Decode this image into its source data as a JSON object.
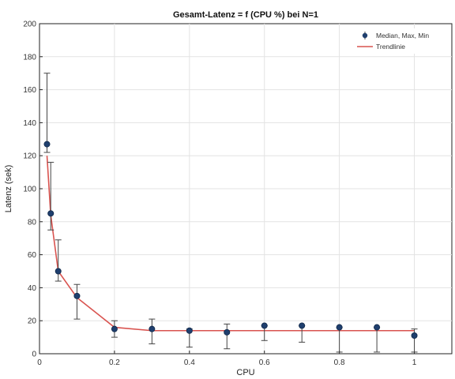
{
  "chart_data": {
    "type": "scatter",
    "title": "Gesamt-Latenz = f (CPU %) bei N=1",
    "xlabel": "CPU",
    "ylabel": "Latenz (sek)",
    "xlim": [
      0,
      1.1
    ],
    "ylim": [
      0,
      200
    ],
    "xticks": [
      0,
      0.2,
      0.4,
      0.6,
      0.8,
      1
    ],
    "xtick_labels": [
      "0",
      "0.2",
      "0.4",
      "0.6",
      "0.8",
      "1"
    ],
    "yticks": [
      0,
      20,
      40,
      60,
      80,
      100,
      120,
      140,
      160,
      180,
      200
    ],
    "ytick_labels": [
      "0",
      "20",
      "40",
      "60",
      "80",
      "100",
      "120",
      "140",
      "160",
      "180",
      "200"
    ],
    "grid": true,
    "legend_position": "top-right",
    "series": [
      {
        "name": "Median, Max, Min",
        "kind": "errorbar-points",
        "color": "#1f3f6e",
        "x": [
          0.02,
          0.03,
          0.05,
          0.1,
          0.2,
          0.3,
          0.4,
          0.5,
          0.6,
          0.7,
          0.8,
          0.9,
          1.0
        ],
        "median": [
          127,
          85,
          50,
          35,
          15,
          15,
          14,
          13,
          17,
          17,
          16,
          16,
          11
        ],
        "max": [
          170,
          116,
          69,
          42,
          20,
          21,
          15,
          18,
          17,
          17,
          16,
          16,
          15
        ],
        "min": [
          122,
          75,
          44,
          21,
          10,
          6,
          4,
          3,
          8,
          7,
          1,
          1,
          1
        ]
      },
      {
        "name": "Trendlinie",
        "kind": "line",
        "color": "#d9534f",
        "x": [
          0.02,
          0.03,
          0.05,
          0.1,
          0.2,
          0.3,
          0.4,
          0.5,
          0.6,
          0.7,
          0.8,
          0.9,
          1.0
        ],
        "y": [
          120,
          84,
          50,
          34,
          16,
          14,
          14,
          14,
          14,
          14,
          14,
          14,
          14
        ]
      }
    ]
  }
}
